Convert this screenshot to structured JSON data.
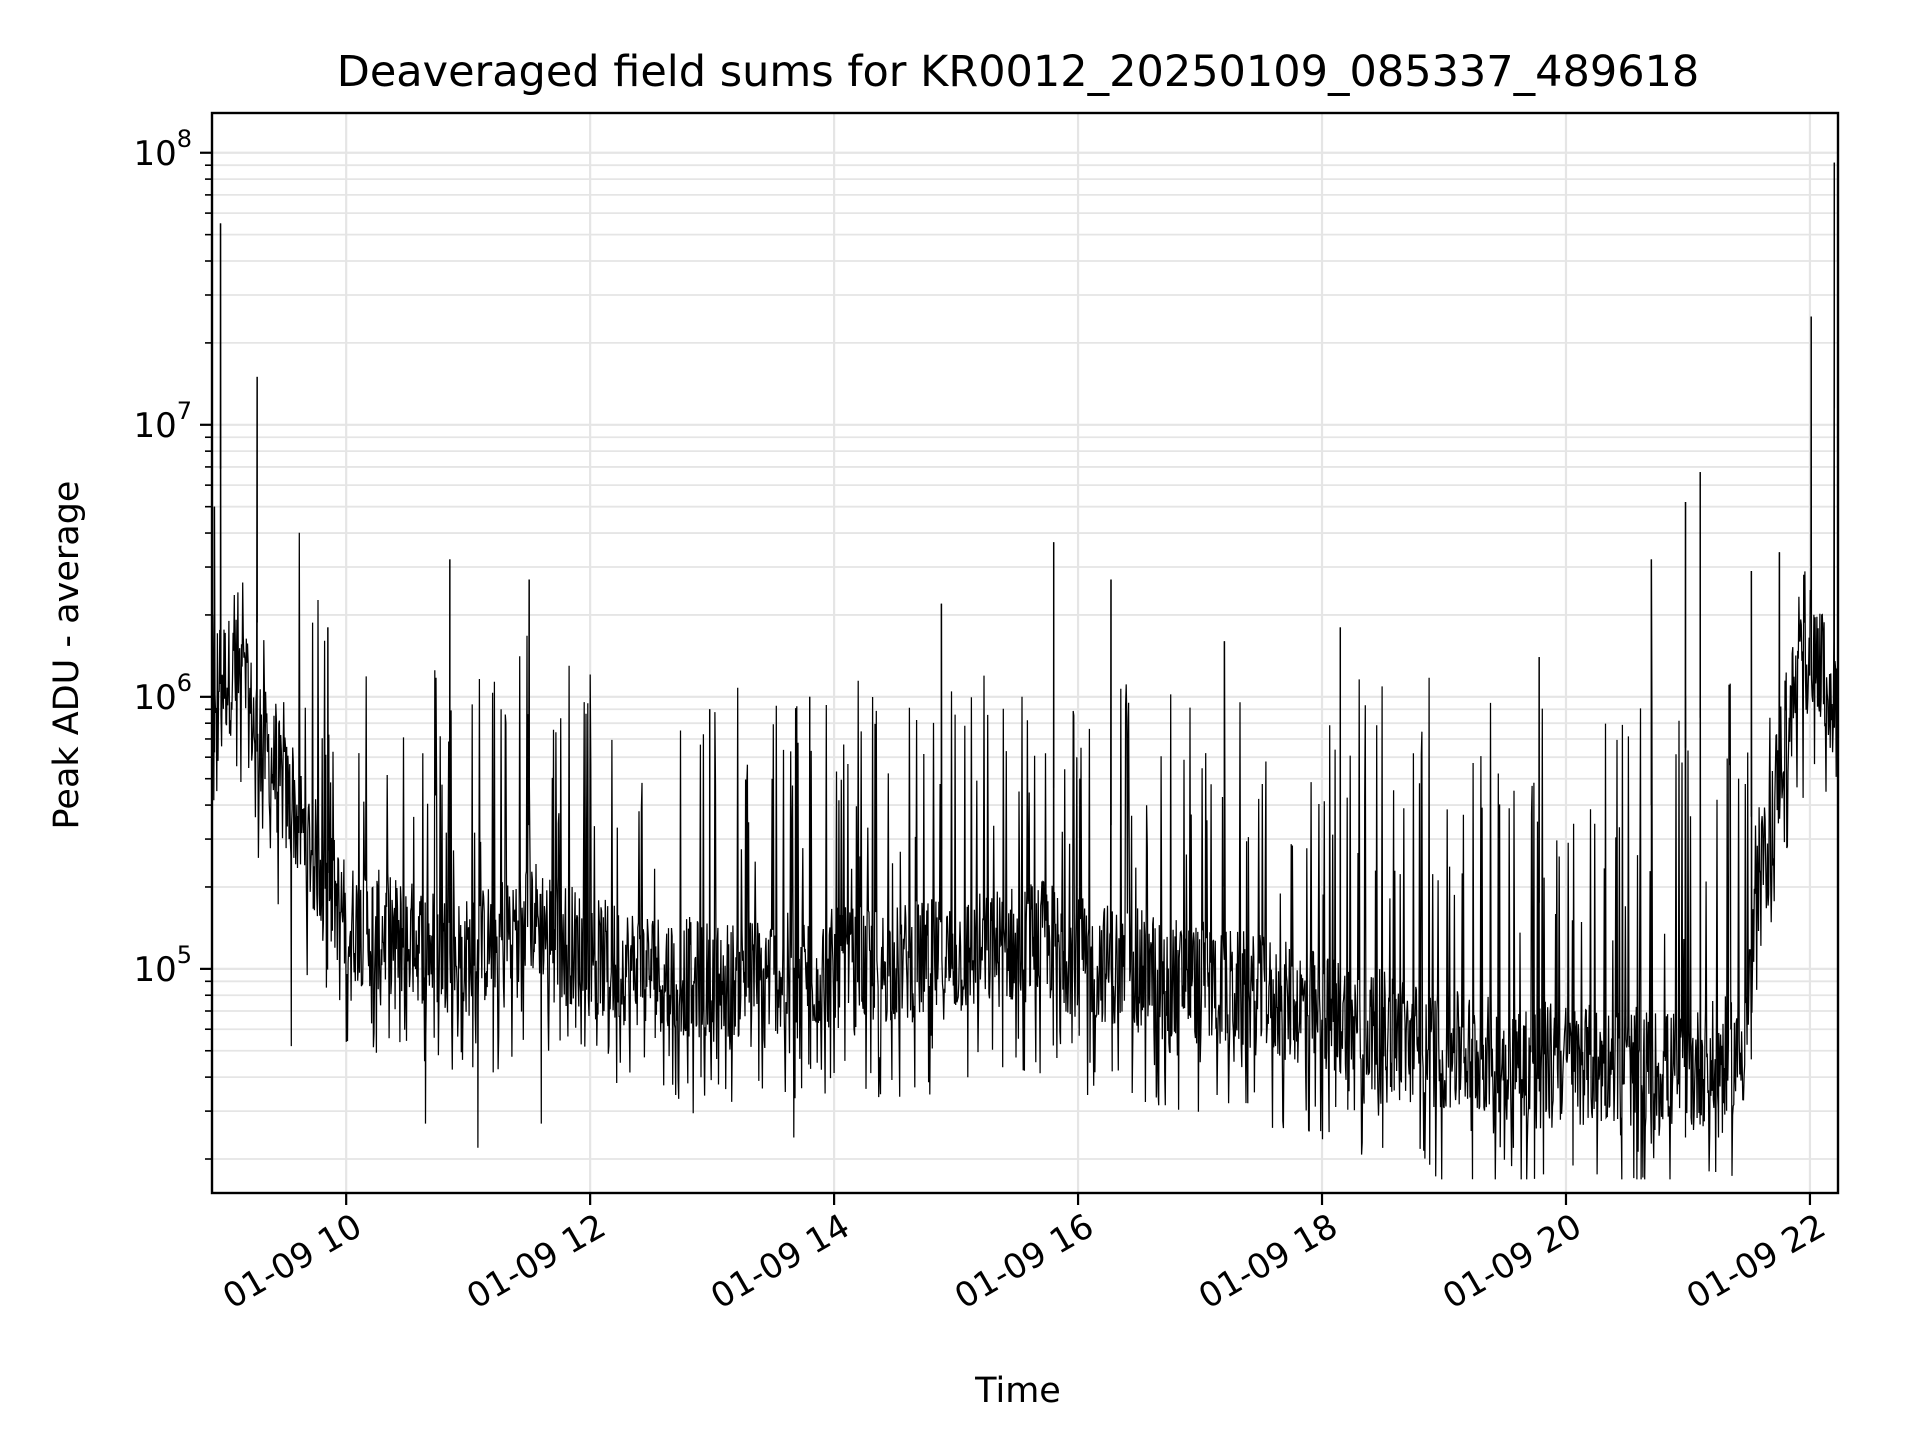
{
  "chart_data": {
    "type": "line",
    "title": "Deaveraged field sums for KR0012_20250109_085337_489618",
    "xlabel": "Time",
    "ylabel": "Peak ADU - average",
    "x_start": "2025-01-09 08:53",
    "x_end": "2025-01-09 22:14",
    "x_range_hours": [
      8.9,
      22.23
    ],
    "yscale": "log",
    "ylim": [
      15000,
      140000000
    ],
    "grid": "on",
    "legend": "none",
    "line_color": "#000000",
    "grid_color": "#e5e5e5",
    "x_ticks": [
      {
        "value": 10,
        "label": "01-09 10"
      },
      {
        "value": 12,
        "label": "01-09 12"
      },
      {
        "value": 14,
        "label": "01-09 14"
      },
      {
        "value": 16,
        "label": "01-09 16"
      },
      {
        "value": 18,
        "label": "01-09 18"
      },
      {
        "value": 20,
        "label": "01-09 20"
      },
      {
        "value": 22,
        "label": "01-09 22"
      }
    ],
    "y_ticks": [
      {
        "value": 100000,
        "base": "10",
        "exp": "5"
      },
      {
        "value": 1000000,
        "base": "10",
        "exp": "6"
      },
      {
        "value": 10000000,
        "base": "10",
        "exp": "7"
      },
      {
        "value": 100000000,
        "base": "10",
        "exp": "8"
      }
    ],
    "baseline": [
      {
        "x": 8.9,
        "y": 1200000
      },
      {
        "x": 9.1,
        "y": 1200000
      },
      {
        "x": 9.3,
        "y": 700000
      },
      {
        "x": 9.6,
        "y": 350000
      },
      {
        "x": 10.0,
        "y": 150000
      },
      {
        "x": 11.0,
        "y": 110000
      },
      {
        "x": 11.5,
        "y": 160000
      },
      {
        "x": 12.0,
        "y": 110000
      },
      {
        "x": 13.0,
        "y": 90000
      },
      {
        "x": 14.0,
        "y": 100000
      },
      {
        "x": 15.0,
        "y": 110000
      },
      {
        "x": 15.7,
        "y": 130000
      },
      {
        "x": 16.0,
        "y": 110000
      },
      {
        "x": 17.0,
        "y": 90000
      },
      {
        "x": 18.0,
        "y": 70000
      },
      {
        "x": 19.0,
        "y": 50000
      },
      {
        "x": 20.0,
        "y": 45000
      },
      {
        "x": 21.0,
        "y": 42000
      },
      {
        "x": 21.45,
        "y": 50000
      },
      {
        "x": 21.6,
        "y": 200000
      },
      {
        "x": 21.8,
        "y": 800000
      },
      {
        "x": 22.0,
        "y": 1500000
      },
      {
        "x": 22.23,
        "y": 900000
      }
    ],
    "spikes": [
      {
        "x": 8.92,
        "y": 5000000
      },
      {
        "x": 8.97,
        "y": 55000000
      },
      {
        "x": 9.27,
        "y": 15000000
      },
      {
        "x": 9.85,
        "y": 1800000
      },
      {
        "x": 10.85,
        "y": 3200000
      },
      {
        "x": 11.5,
        "y": 2700000
      },
      {
        "x": 12.98,
        "y": 900000
      },
      {
        "x": 13.8,
        "y": 1000000
      },
      {
        "x": 14.88,
        "y": 2200000
      },
      {
        "x": 15.8,
        "y": 3700000
      },
      {
        "x": 16.27,
        "y": 2700000
      },
      {
        "x": 17.2,
        "y": 1600000
      },
      {
        "x": 18.15,
        "y": 1800000
      },
      {
        "x": 19.78,
        "y": 1400000
      },
      {
        "x": 20.7,
        "y": 3200000
      },
      {
        "x": 20.98,
        "y": 5200000
      },
      {
        "x": 21.1,
        "y": 6700000
      },
      {
        "x": 21.52,
        "y": 2900000
      },
      {
        "x": 21.75,
        "y": 3400000
      },
      {
        "x": 22.01,
        "y": 25000000
      },
      {
        "x": 22.2,
        "y": 92000000
      }
    ],
    "dips": [
      {
        "x": 9.55,
        "y": 52000
      },
      {
        "x": 10.65,
        "y": 27000
      },
      {
        "x": 11.08,
        "y": 22000
      },
      {
        "x": 11.6,
        "y": 27000
      },
      {
        "x": 13.67,
        "y": 24000
      },
      {
        "x": 16.28,
        "y": 42000
      },
      {
        "x": 18.5,
        "y": 40000
      },
      {
        "x": 20.98,
        "y": 24000
      },
      {
        "x": 21.25,
        "y": 24000
      }
    ]
  }
}
